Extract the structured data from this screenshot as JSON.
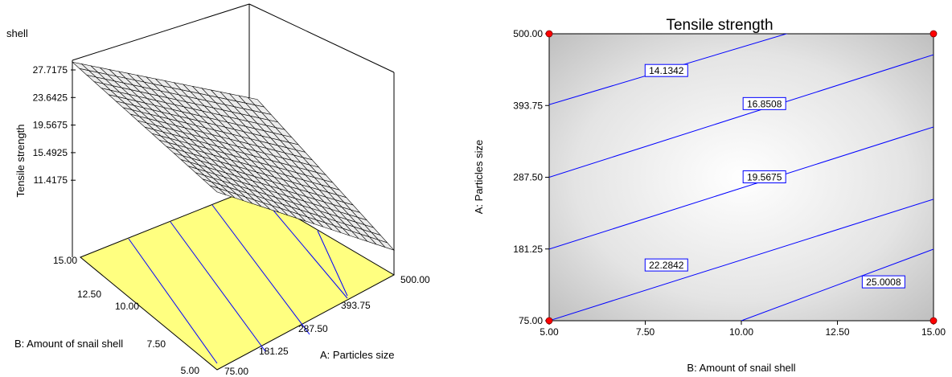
{
  "chart_data": [
    {
      "type": "surface3d",
      "partial_title": "shell",
      "zlabel": "Tensile strength",
      "z_ticks": [
        "27.7175",
        "23.6425",
        "19.5675",
        "15.4925",
        "11.4175"
      ],
      "x_label": "A: Particles size",
      "x_ticks": [
        "75.00",
        "181.25",
        "287.50",
        "393.75",
        "500.00"
      ],
      "y_label": "B: Amount of snail shell",
      "y_ticks": [
        "5.00",
        "7.50",
        "10.00",
        "12.50",
        "15.00"
      ],
      "xlim": [
        75,
        500
      ],
      "ylim": [
        5,
        15
      ],
      "zlim": [
        11.4175,
        27.7175
      ],
      "surface_corners": [
        {
          "A": 75,
          "B": 5,
          "z": 26.2
        },
        {
          "A": 75,
          "B": 15,
          "z": 27.7
        },
        {
          "A": 500,
          "B": 15,
          "z": 16.3
        },
        {
          "A": 500,
          "B": 5,
          "z": 13.0
        }
      ],
      "floor_color": "#ffff80",
      "grid": true
    },
    {
      "type": "contour",
      "title": "Tensile strength",
      "xlabel": "B: Amount of snail shell",
      "ylabel": "A: Particles size",
      "x_ticks": [
        "5.00",
        "7.50",
        "10.00",
        "12.50",
        "15.00"
      ],
      "y_ticks": [
        "75.00",
        "181.25",
        "287.50",
        "393.75",
        "500.00"
      ],
      "xlim": [
        5,
        15
      ],
      "ylim": [
        75,
        500
      ],
      "contours": [
        {
          "label": "14.1342",
          "points": [
            [
              5,
              395
            ],
            [
              15,
              565
            ]
          ],
          "label_at": [
            8.05,
            445
          ]
        },
        {
          "label": "16.8508",
          "points": [
            [
              5,
              287.5
            ],
            [
              15,
              469
            ]
          ],
          "label_at": [
            10.6,
            396
          ]
        },
        {
          "label": "19.5675",
          "points": [
            [
              5,
              181
            ],
            [
              15,
              362
            ]
          ],
          "label_at": [
            10.6,
            287.5
          ]
        },
        {
          "label": "22.2842",
          "points": [
            [
              5,
              75
            ],
            [
              15,
              255
            ]
          ],
          "label_at": [
            8.05,
            157
          ]
        },
        {
          "label": "25.0008",
          "points": [
            [
              10,
              75
            ],
            [
              15,
              181
            ]
          ],
          "label_at": [
            13.7,
            132
          ]
        }
      ],
      "design_points": [
        [
          5,
          75
        ],
        [
          15,
          75
        ],
        [
          5,
          500
        ],
        [
          15,
          500
        ]
      ],
      "line_color": "#0000ff",
      "point_color": "#ff0000"
    }
  ]
}
